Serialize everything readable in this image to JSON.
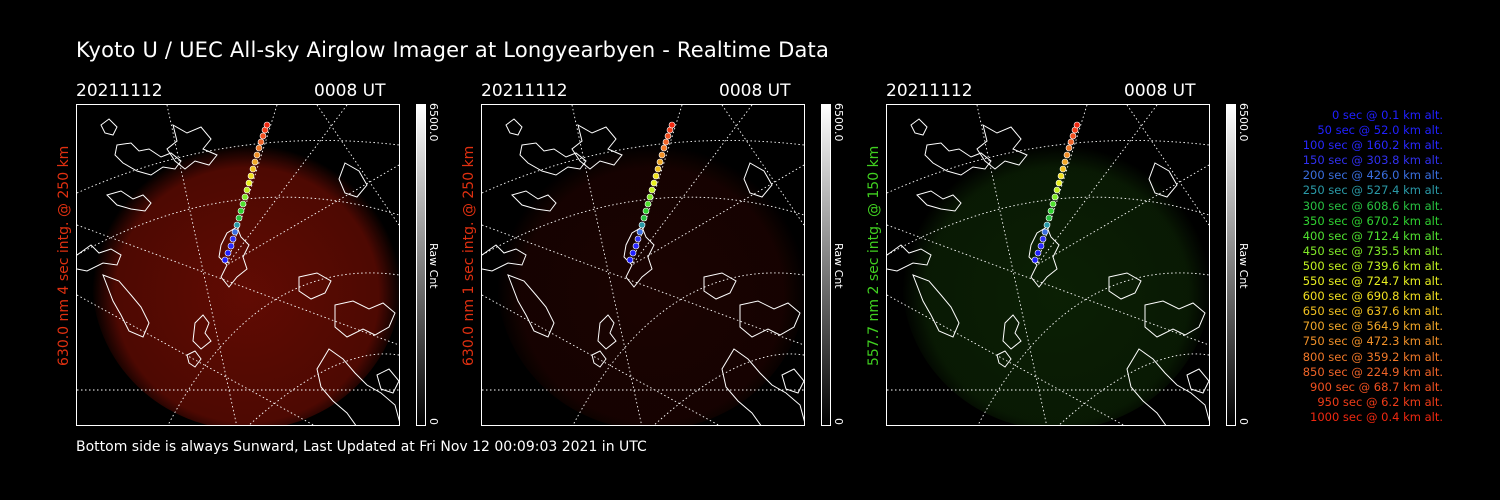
{
  "title": "Kyoto U / UEC All-sky Airglow Imager at Longyearbyen - Realtime Data",
  "footer": "Bottom side is always Sunward, Last Updated at Fri Nov 12 00:09:03 2021 in UTC",
  "panels": [
    {
      "date": "20211112",
      "time": "0008 UT",
      "ylabel": "630.0 nm 4 sec intg. @ 250 km",
      "cbar_max": "6500.0",
      "cbar_min": "0",
      "cbar_unit": "Raw Cnt",
      "label_color": "#e03010",
      "glow_color": "#b01405",
      "glow_opacity": 0.55
    },
    {
      "date": "20211112",
      "time": "0008 UT",
      "ylabel": "630.0 nm 1 sec intg. @ 250 km",
      "cbar_max": "6500.0",
      "cbar_min": "0",
      "cbar_unit": "Raw Cnt",
      "label_color": "#e03010",
      "glow_color": "#7a0e04",
      "glow_opacity": 0.22
    },
    {
      "date": "20211112",
      "time": "0008 UT",
      "ylabel": "557.7 nm 2 sec intg. @ 150 km",
      "cbar_max": "6500.0",
      "cbar_min": "0",
      "cbar_unit": "Raw Cnt",
      "label_color": "#40d020",
      "glow_color": "#1f5a0c",
      "glow_opacity": 0.35
    }
  ],
  "legend": [
    {
      "text": "0 sec @   0.1 km alt.",
      "color": "#2020ff"
    },
    {
      "text": "50 sec @  52.0 km alt.",
      "color": "#2020ff"
    },
    {
      "text": "100 sec @ 160.2 km alt.",
      "color": "#2828ff"
    },
    {
      "text": "150 sec @ 303.8 km alt.",
      "color": "#3030f0"
    },
    {
      "text": "200 sec @ 426.0 km alt.",
      "color": "#3a6ee0"
    },
    {
      "text": "250 sec @ 527.4 km alt.",
      "color": "#2a9aa8"
    },
    {
      "text": "300 sec @ 608.6 km alt.",
      "color": "#28c040"
    },
    {
      "text": "350 sec @ 670.2 km alt.",
      "color": "#30d030"
    },
    {
      "text": "400 sec @ 712.4 km alt.",
      "color": "#50e030"
    },
    {
      "text": "450 sec @ 735.5 km alt.",
      "color": "#80e828"
    },
    {
      "text": "500 sec @ 739.6 km alt.",
      "color": "#c0f020"
    },
    {
      "text": "550 sec @ 724.7 km alt.",
      "color": "#e8f020"
    },
    {
      "text": "600 sec @ 690.8 km alt.",
      "color": "#f0e020"
    },
    {
      "text": "650 sec @ 637.6 km alt.",
      "color": "#f0c020"
    },
    {
      "text": "700 sec @ 564.9 km alt.",
      "color": "#f0a828"
    },
    {
      "text": "750 sec @ 472.3 km alt.",
      "color": "#f09028"
    },
    {
      "text": "800 sec @ 359.2 km alt.",
      "color": "#f07828"
    },
    {
      "text": "850 sec @ 224.9 km alt.",
      "color": "#f06428"
    },
    {
      "text": "900 sec @  68.7 km alt.",
      "color": "#f05020"
    },
    {
      "text": "950 sec @   6.2 km alt.",
      "color": "#f03c18"
    },
    {
      "text": "1000 sec @   0.4 km alt.",
      "color": "#f02810"
    }
  ]
}
